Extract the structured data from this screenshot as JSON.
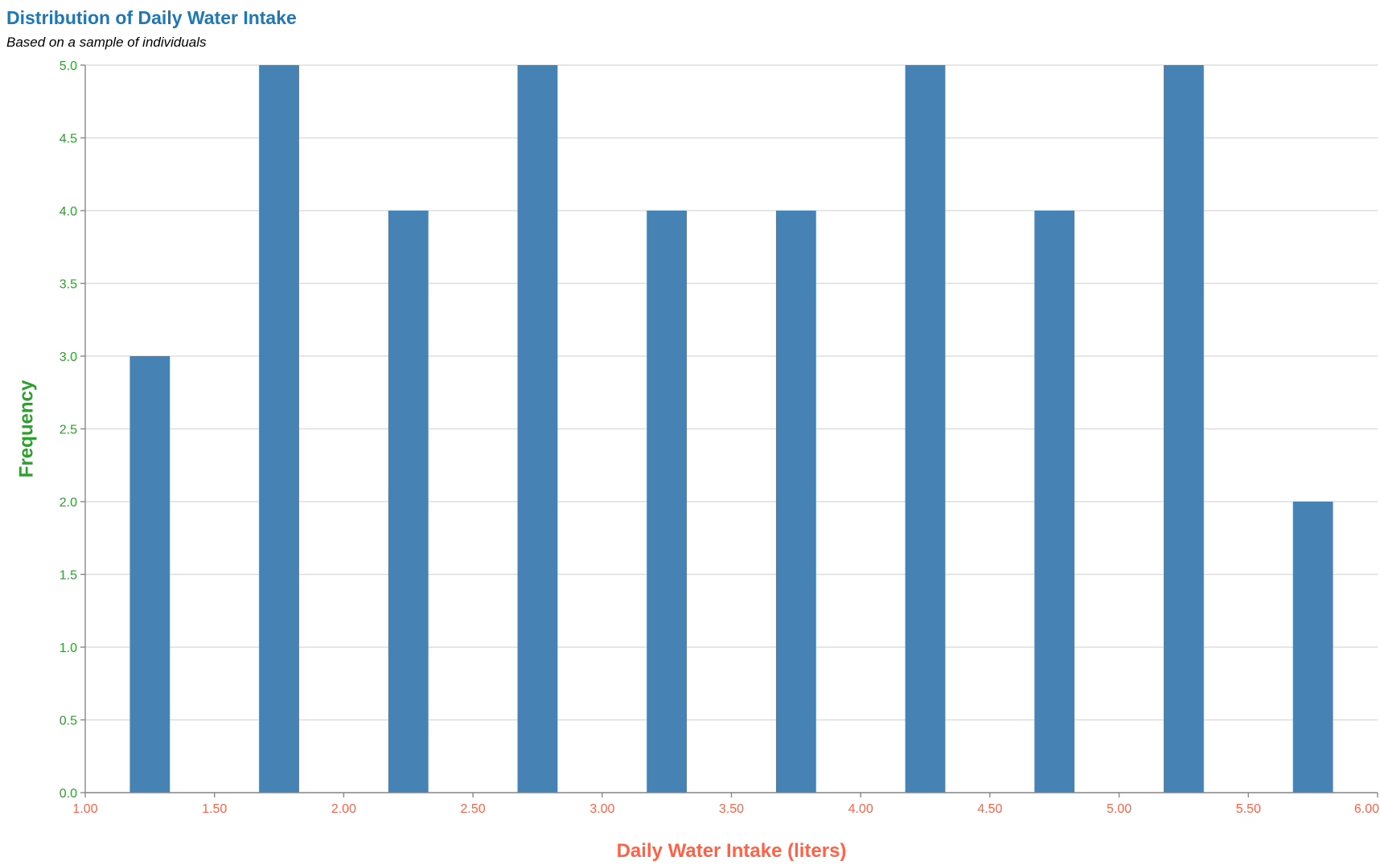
{
  "colors": {
    "title": "#1f77b4",
    "subtitle": "#000000",
    "bar": "#4682b4",
    "x_axis": "#ff6347",
    "y_axis": "#2ca02c"
  },
  "chart_data": {
    "type": "bar",
    "title": "Distribution of Daily Water Intake",
    "subtitle": "Based on a sample of individuals",
    "xlabel": "Daily Water Intake (liters)",
    "ylabel": "Frequency",
    "xlim": [
      1.0,
      6.0
    ],
    "ylim": [
      0,
      5
    ],
    "bin_width": 0.5,
    "x_ticks": [
      "1.00",
      "1.50",
      "2.00",
      "2.50",
      "3.00",
      "3.50",
      "4.00",
      "4.50",
      "5.00",
      "5.50",
      "6.00"
    ],
    "y_ticks": [
      "0.0",
      "0.5",
      "1.0",
      "1.5",
      "2.0",
      "2.5",
      "3.0",
      "3.5",
      "4.0",
      "4.5",
      "5.0"
    ],
    "bins": [
      {
        "x": 1.25,
        "value": 3
      },
      {
        "x": 1.75,
        "value": 5
      },
      {
        "x": 2.25,
        "value": 4
      },
      {
        "x": 2.75,
        "value": 5
      },
      {
        "x": 3.25,
        "value": 4
      },
      {
        "x": 3.75,
        "value": 4
      },
      {
        "x": 4.25,
        "value": 5
      },
      {
        "x": 4.75,
        "value": 4
      },
      {
        "x": 5.25,
        "value": 5
      },
      {
        "x": 5.75,
        "value": 2
      }
    ],
    "grid": true
  }
}
